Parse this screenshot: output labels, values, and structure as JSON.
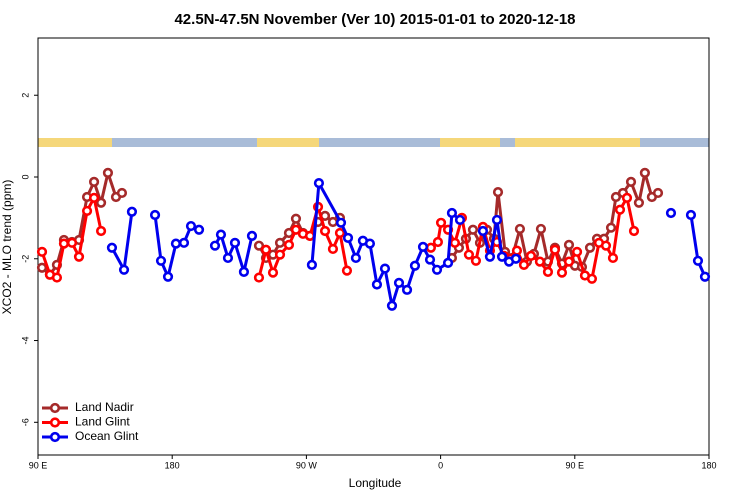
{
  "chart_data": {
    "type": "line",
    "title": "42.5N-47.5N November (Ver 10)   2015-01-01 to 2020-12-18",
    "xlabel": "Longitude",
    "ylabel": "XCO2 - MLO trend (ppm)",
    "xlim": [
      90,
      540
    ],
    "xticks": [
      {
        "value": 90,
        "label": "90 E"
      },
      {
        "value": 180,
        "label": "180"
      },
      {
        "value": 270,
        "label": "90 W"
      },
      {
        "value": 360,
        "label": "0"
      },
      {
        "value": 450,
        "label": "90 E"
      },
      {
        "value": 540,
        "label": "180"
      }
    ],
    "ylim": [
      -6.8,
      3.4
    ],
    "yticks": [
      2,
      0,
      -2,
      -4,
      -6
    ],
    "legend": "bottomleft",
    "series": [
      {
        "name": "Land Nadir",
        "color": "#a52a2a",
        "x": [
          92.7,
          98.0,
          102.7,
          107.4,
          112.8,
          117.5,
          122.9,
          127.6,
          132.3,
          136.9,
          142.3,
          146.3,
          200,
          238.2,
          242.9,
          247.6,
          252.3,
          258.3,
          263.0,
          267.7,
          272.4,
          277.8,
          282.5,
          287.8,
          292.5,
          320,
          367.6,
          372.3,
          377.0,
          381.7,
          386.4,
          391.1,
          395.8,
          398.5,
          403.2,
          407.9,
          413.2,
          417.9,
          422.6,
          427.3,
          432.0,
          436.7,
          441.4,
          446.1,
          450.1,
          454.8,
          460.2,
          464.9,
          469.6,
          474.3,
          477.6,
          482.3,
          487.7,
          493.0,
          497.0,
          501.7,
          505.8
        ],
        "values": [
          -2.22,
          -2.39,
          -2.15,
          -1.54,
          -1.59,
          -1.54,
          -0.49,
          -0.12,
          -0.63,
          0.1,
          -0.49,
          -0.39,
          null,
          -1.68,
          -1.98,
          -1.9,
          -1.61,
          -1.37,
          -1.02,
          -1.37,
          -1.44,
          -1.1,
          -0.95,
          -1.1,
          -1.0,
          null,
          -1.98,
          -1.73,
          -1.51,
          -1.29,
          -1.61,
          -1.29,
          -1.51,
          -0.37,
          -1.83,
          -1.98,
          -1.27,
          -2.07,
          -1.88,
          -1.27,
          -2.07,
          -1.73,
          -2.12,
          -1.66,
          -2.17,
          -2.2,
          -1.73,
          -1.51,
          -1.51,
          -1.24,
          -0.49,
          -0.39,
          -0.12,
          -0.63,
          0.1,
          -0.49,
          -0.39
        ]
      },
      {
        "name": "Land Glint",
        "color": "#ff0000",
        "x": [
          92.7,
          98.0,
          102.7,
          107.4,
          112.8,
          117.5,
          122.9,
          127.6,
          132.3,
          200,
          238.2,
          242.9,
          247.6,
          252.3,
          258.3,
          263.0,
          267.7,
          272.4,
          277.8,
          282.5,
          287.8,
          292.5,
          297.2,
          320,
          353.5,
          358.2,
          360.3,
          365.0,
          369.6,
          374.3,
          379.0,
          383.7,
          388.4,
          393.1,
          397.8,
          402.5,
          406.5,
          411.2,
          415.9,
          420.6,
          426.6,
          432.0,
          436.7,
          441.4,
          446.1,
          451.5,
          456.8,
          461.5,
          466.2,
          470.9,
          475.6,
          480.3,
          485.0,
          489.7
        ],
        "values": [
          -1.83,
          -2.39,
          -2.46,
          -1.63,
          -1.61,
          -1.95,
          -0.83,
          -0.51,
          -1.32,
          null,
          -2.46,
          -1.78,
          -2.34,
          -1.9,
          -1.66,
          -1.29,
          -1.39,
          -1.44,
          -0.73,
          -1.32,
          -1.76,
          -1.37,
          -2.29,
          null,
          -1.73,
          -1.59,
          -1.12,
          -1.29,
          -1.61,
          -1.0,
          -1.9,
          -2.05,
          -1.22,
          -1.8,
          -1.59,
          -1.93,
          -2.0,
          -1.8,
          -2.15,
          -1.93,
          -2.07,
          -2.32,
          -1.78,
          -2.34,
          -2.07,
          -1.83,
          -2.41,
          -2.49,
          -1.61,
          -1.68,
          -1.98,
          -0.8,
          -0.51,
          -1.32
        ]
      },
      {
        "name": "Ocean Glint",
        "color": "#0000ee",
        "x": [
          139.6,
          147.7,
          153.0,
          160,
          168.5,
          172.5,
          177.2,
          182.5,
          187.9,
          192.6,
          198.0,
          203,
          208.7,
          212.7,
          217.4,
          222.1,
          228.1,
          233.5,
          250,
          273.7,
          278.4,
          293.2,
          297.9,
          303.2,
          307.9,
          312.6,
          317.3,
          322.7,
          327.4,
          332.1,
          337.5,
          342.8,
          348.2,
          352.9,
          357.6,
          365.0,
          367.6,
          373.0,
          380,
          388.4,
          393.1,
          397.8,
          401.2,
          405.9,
          410.5,
          450,
          514.5,
          520,
          527.9,
          532.6,
          537.3
        ],
        "values": [
          -1.73,
          -2.27,
          -0.85,
          null,
          -0.93,
          -2.05,
          -2.44,
          -1.63,
          -1.61,
          -1.2,
          -1.29,
          null,
          -1.68,
          -1.41,
          -1.98,
          -1.61,
          -2.32,
          -1.44,
          null,
          -2.15,
          -0.15,
          -1.12,
          -1.49,
          -1.98,
          -1.56,
          -1.63,
          -2.63,
          -2.24,
          -3.15,
          -2.59,
          -2.76,
          -2.17,
          -1.71,
          -2.02,
          -2.27,
          -2.1,
          -0.88,
          -1.05,
          null,
          -1.32,
          -1.95,
          -1.05,
          -1.95,
          -2.07,
          -2.0,
          null,
          -0.88,
          null,
          -0.93,
          -2.05,
          -2.44
        ]
      }
    ]
  }
}
